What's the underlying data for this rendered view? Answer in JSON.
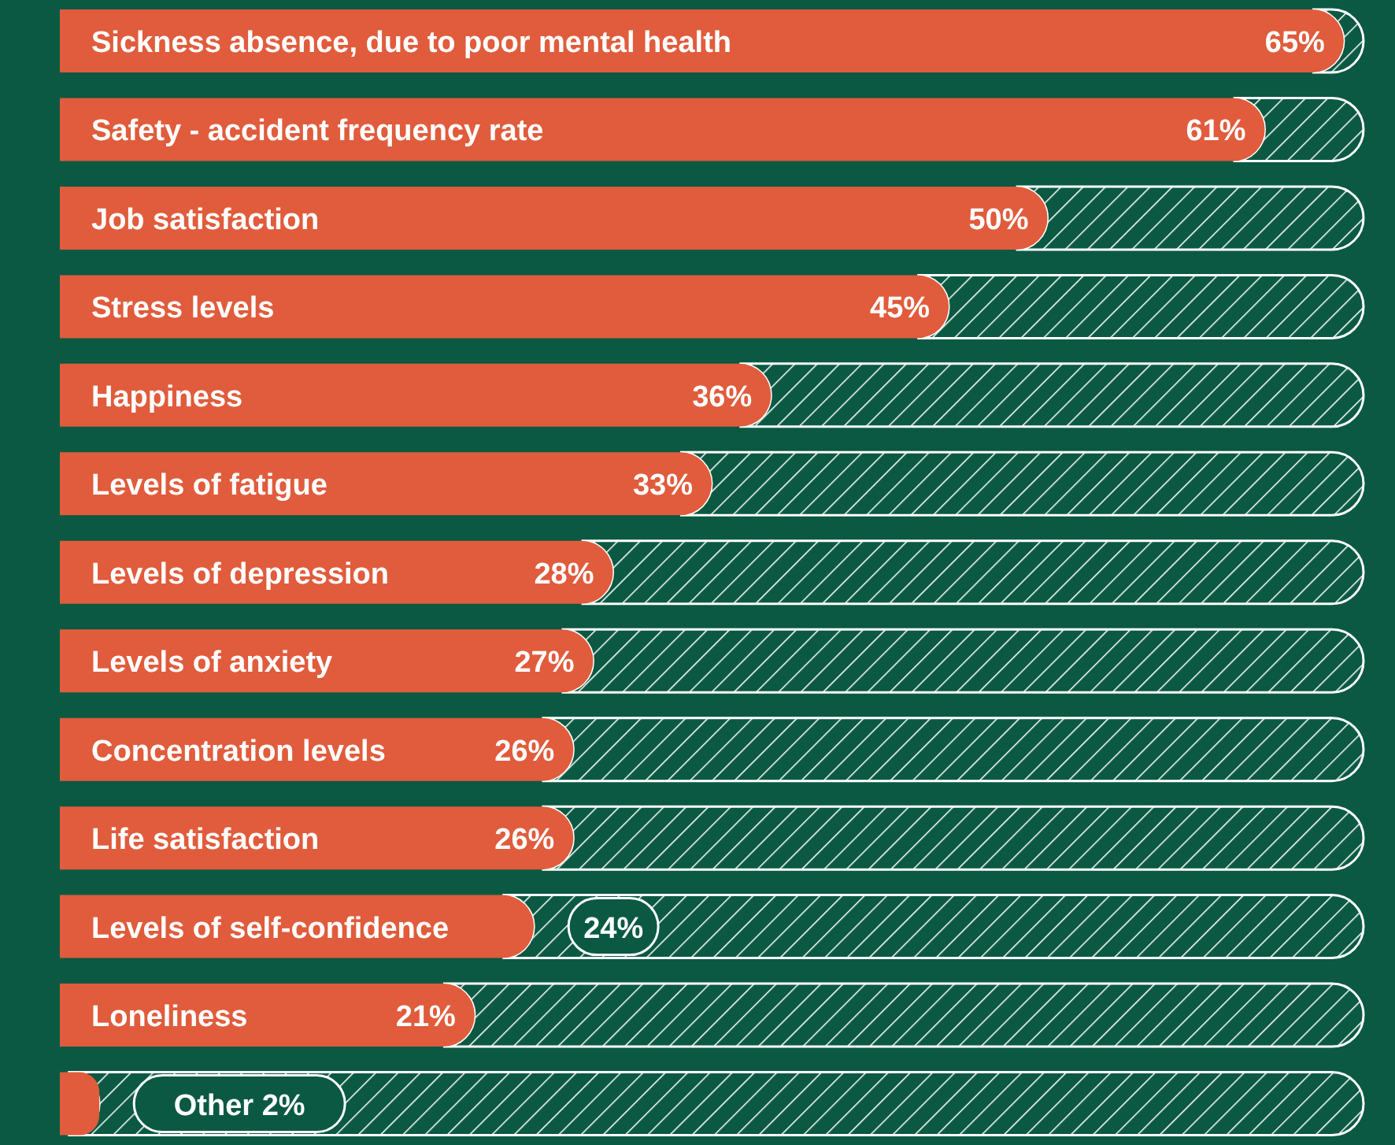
{
  "chart_data": {
    "type": "bar",
    "orientation": "horizontal",
    "categories": [
      "Sickness absence, due to poor mental health",
      "Safety - accident frequency rate",
      "Job satisfaction",
      "Stress levels",
      "Happiness",
      "Levels of fatigue",
      "Levels of depression",
      "Levels of anxiety",
      "Concentration levels",
      "Life satisfaction",
      "Levels of self-confidence",
      "Loneliness",
      "Other"
    ],
    "values": [
      65,
      61,
      50,
      45,
      36,
      33,
      28,
      27,
      26,
      26,
      24,
      21,
      2
    ],
    "value_labels": [
      "65%",
      "61%",
      "50%",
      "45%",
      "36%",
      "33%",
      "28%",
      "27%",
      "26%",
      "26%",
      "24%",
      "21%",
      "2%"
    ],
    "color": "#e05c3c",
    "xlim": [
      0,
      66
    ]
  }
}
